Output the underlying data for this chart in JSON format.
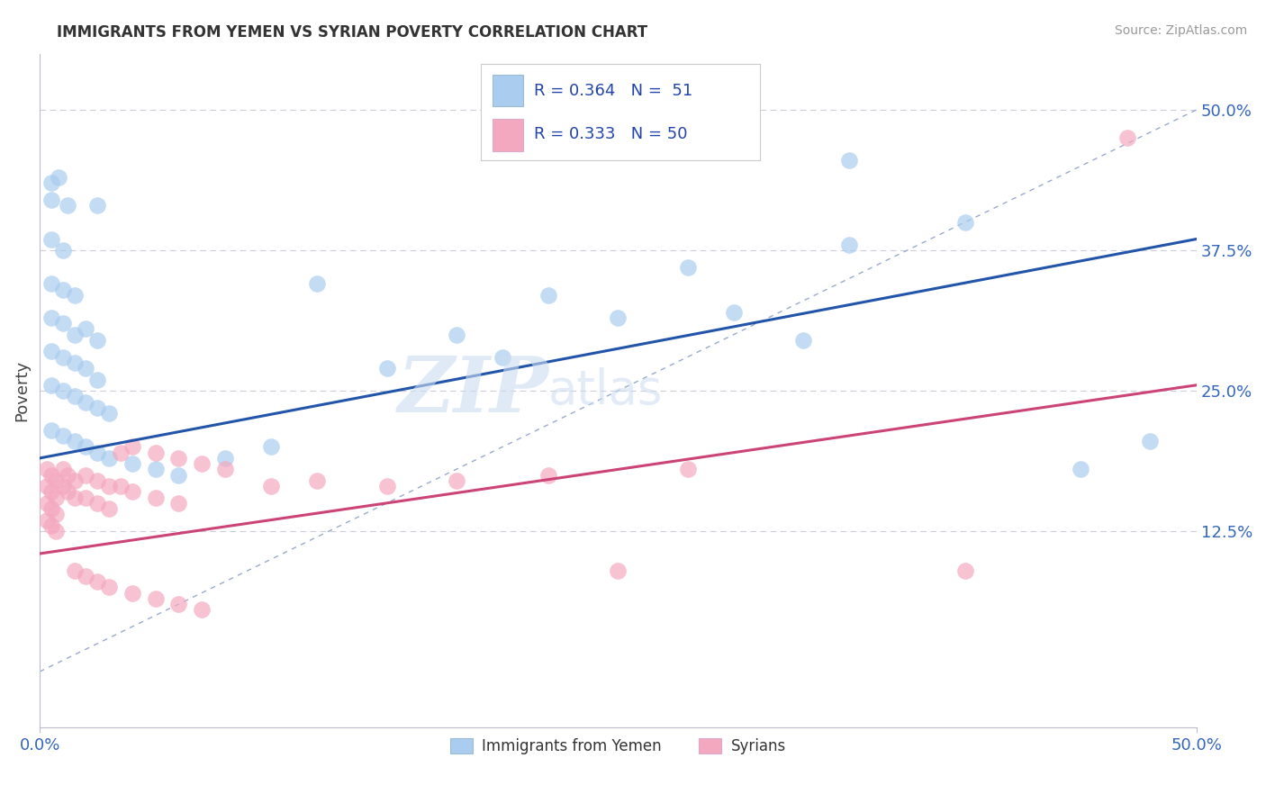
{
  "title": "IMMIGRANTS FROM YEMEN VS SYRIAN POVERTY CORRELATION CHART",
  "source": "Source: ZipAtlas.com",
  "ylabel": "Poverty",
  "xlim": [
    0.0,
    0.5
  ],
  "ylim": [
    -0.05,
    0.55
  ],
  "blue_color": "#aaccee",
  "pink_color": "#f4a8c0",
  "blue_line_color": "#2255aa",
  "pink_line_color": "#cc4477",
  "dashed_line_color": "#aaaacc",
  "watermark_zip": "ZIP",
  "watermark_atlas": "atlas",
  "blue_scatter": [
    [
      0.005,
      0.435
    ],
    [
      0.008,
      0.44
    ],
    [
      0.005,
      0.42
    ],
    [
      0.012,
      0.415
    ],
    [
      0.025,
      0.415
    ],
    [
      0.005,
      0.385
    ],
    [
      0.01,
      0.375
    ],
    [
      0.005,
      0.345
    ],
    [
      0.01,
      0.34
    ],
    [
      0.015,
      0.335
    ],
    [
      0.005,
      0.315
    ],
    [
      0.01,
      0.31
    ],
    [
      0.015,
      0.3
    ],
    [
      0.02,
      0.305
    ],
    [
      0.025,
      0.295
    ],
    [
      0.005,
      0.285
    ],
    [
      0.01,
      0.28
    ],
    [
      0.015,
      0.275
    ],
    [
      0.02,
      0.27
    ],
    [
      0.025,
      0.26
    ],
    [
      0.005,
      0.255
    ],
    [
      0.01,
      0.25
    ],
    [
      0.015,
      0.245
    ],
    [
      0.02,
      0.24
    ],
    [
      0.025,
      0.235
    ],
    [
      0.03,
      0.23
    ],
    [
      0.005,
      0.215
    ],
    [
      0.01,
      0.21
    ],
    [
      0.015,
      0.205
    ],
    [
      0.02,
      0.2
    ],
    [
      0.025,
      0.195
    ],
    [
      0.03,
      0.19
    ],
    [
      0.04,
      0.185
    ],
    [
      0.05,
      0.18
    ],
    [
      0.06,
      0.175
    ],
    [
      0.08,
      0.19
    ],
    [
      0.1,
      0.2
    ],
    [
      0.15,
      0.27
    ],
    [
      0.18,
      0.3
    ],
    [
      0.22,
      0.335
    ],
    [
      0.28,
      0.36
    ],
    [
      0.35,
      0.38
    ],
    [
      0.4,
      0.4
    ],
    [
      0.3,
      0.32
    ],
    [
      0.25,
      0.315
    ],
    [
      0.2,
      0.28
    ],
    [
      0.12,
      0.345
    ],
    [
      0.35,
      0.455
    ],
    [
      0.45,
      0.18
    ],
    [
      0.48,
      0.205
    ],
    [
      0.33,
      0.295
    ]
  ],
  "pink_scatter": [
    [
      0.003,
      0.18
    ],
    [
      0.005,
      0.175
    ],
    [
      0.007,
      0.17
    ],
    [
      0.003,
      0.165
    ],
    [
      0.005,
      0.16
    ],
    [
      0.007,
      0.155
    ],
    [
      0.003,
      0.15
    ],
    [
      0.005,
      0.145
    ],
    [
      0.007,
      0.14
    ],
    [
      0.003,
      0.135
    ],
    [
      0.005,
      0.13
    ],
    [
      0.007,
      0.125
    ],
    [
      0.01,
      0.18
    ],
    [
      0.012,
      0.175
    ],
    [
      0.015,
      0.17
    ],
    [
      0.01,
      0.165
    ],
    [
      0.012,
      0.16
    ],
    [
      0.015,
      0.155
    ],
    [
      0.02,
      0.175
    ],
    [
      0.025,
      0.17
    ],
    [
      0.03,
      0.165
    ],
    [
      0.02,
      0.155
    ],
    [
      0.025,
      0.15
    ],
    [
      0.03,
      0.145
    ],
    [
      0.035,
      0.165
    ],
    [
      0.04,
      0.16
    ],
    [
      0.05,
      0.155
    ],
    [
      0.06,
      0.15
    ],
    [
      0.035,
      0.195
    ],
    [
      0.04,
      0.2
    ],
    [
      0.05,
      0.195
    ],
    [
      0.06,
      0.19
    ],
    [
      0.07,
      0.185
    ],
    [
      0.08,
      0.18
    ],
    [
      0.015,
      0.09
    ],
    [
      0.02,
      0.085
    ],
    [
      0.025,
      0.08
    ],
    [
      0.03,
      0.075
    ],
    [
      0.04,
      0.07
    ],
    [
      0.05,
      0.065
    ],
    [
      0.06,
      0.06
    ],
    [
      0.07,
      0.055
    ],
    [
      0.25,
      0.09
    ],
    [
      0.4,
      0.09
    ],
    [
      0.47,
      0.475
    ],
    [
      0.1,
      0.165
    ],
    [
      0.12,
      0.17
    ],
    [
      0.15,
      0.165
    ],
    [
      0.18,
      0.17
    ],
    [
      0.22,
      0.175
    ],
    [
      0.28,
      0.18
    ]
  ]
}
